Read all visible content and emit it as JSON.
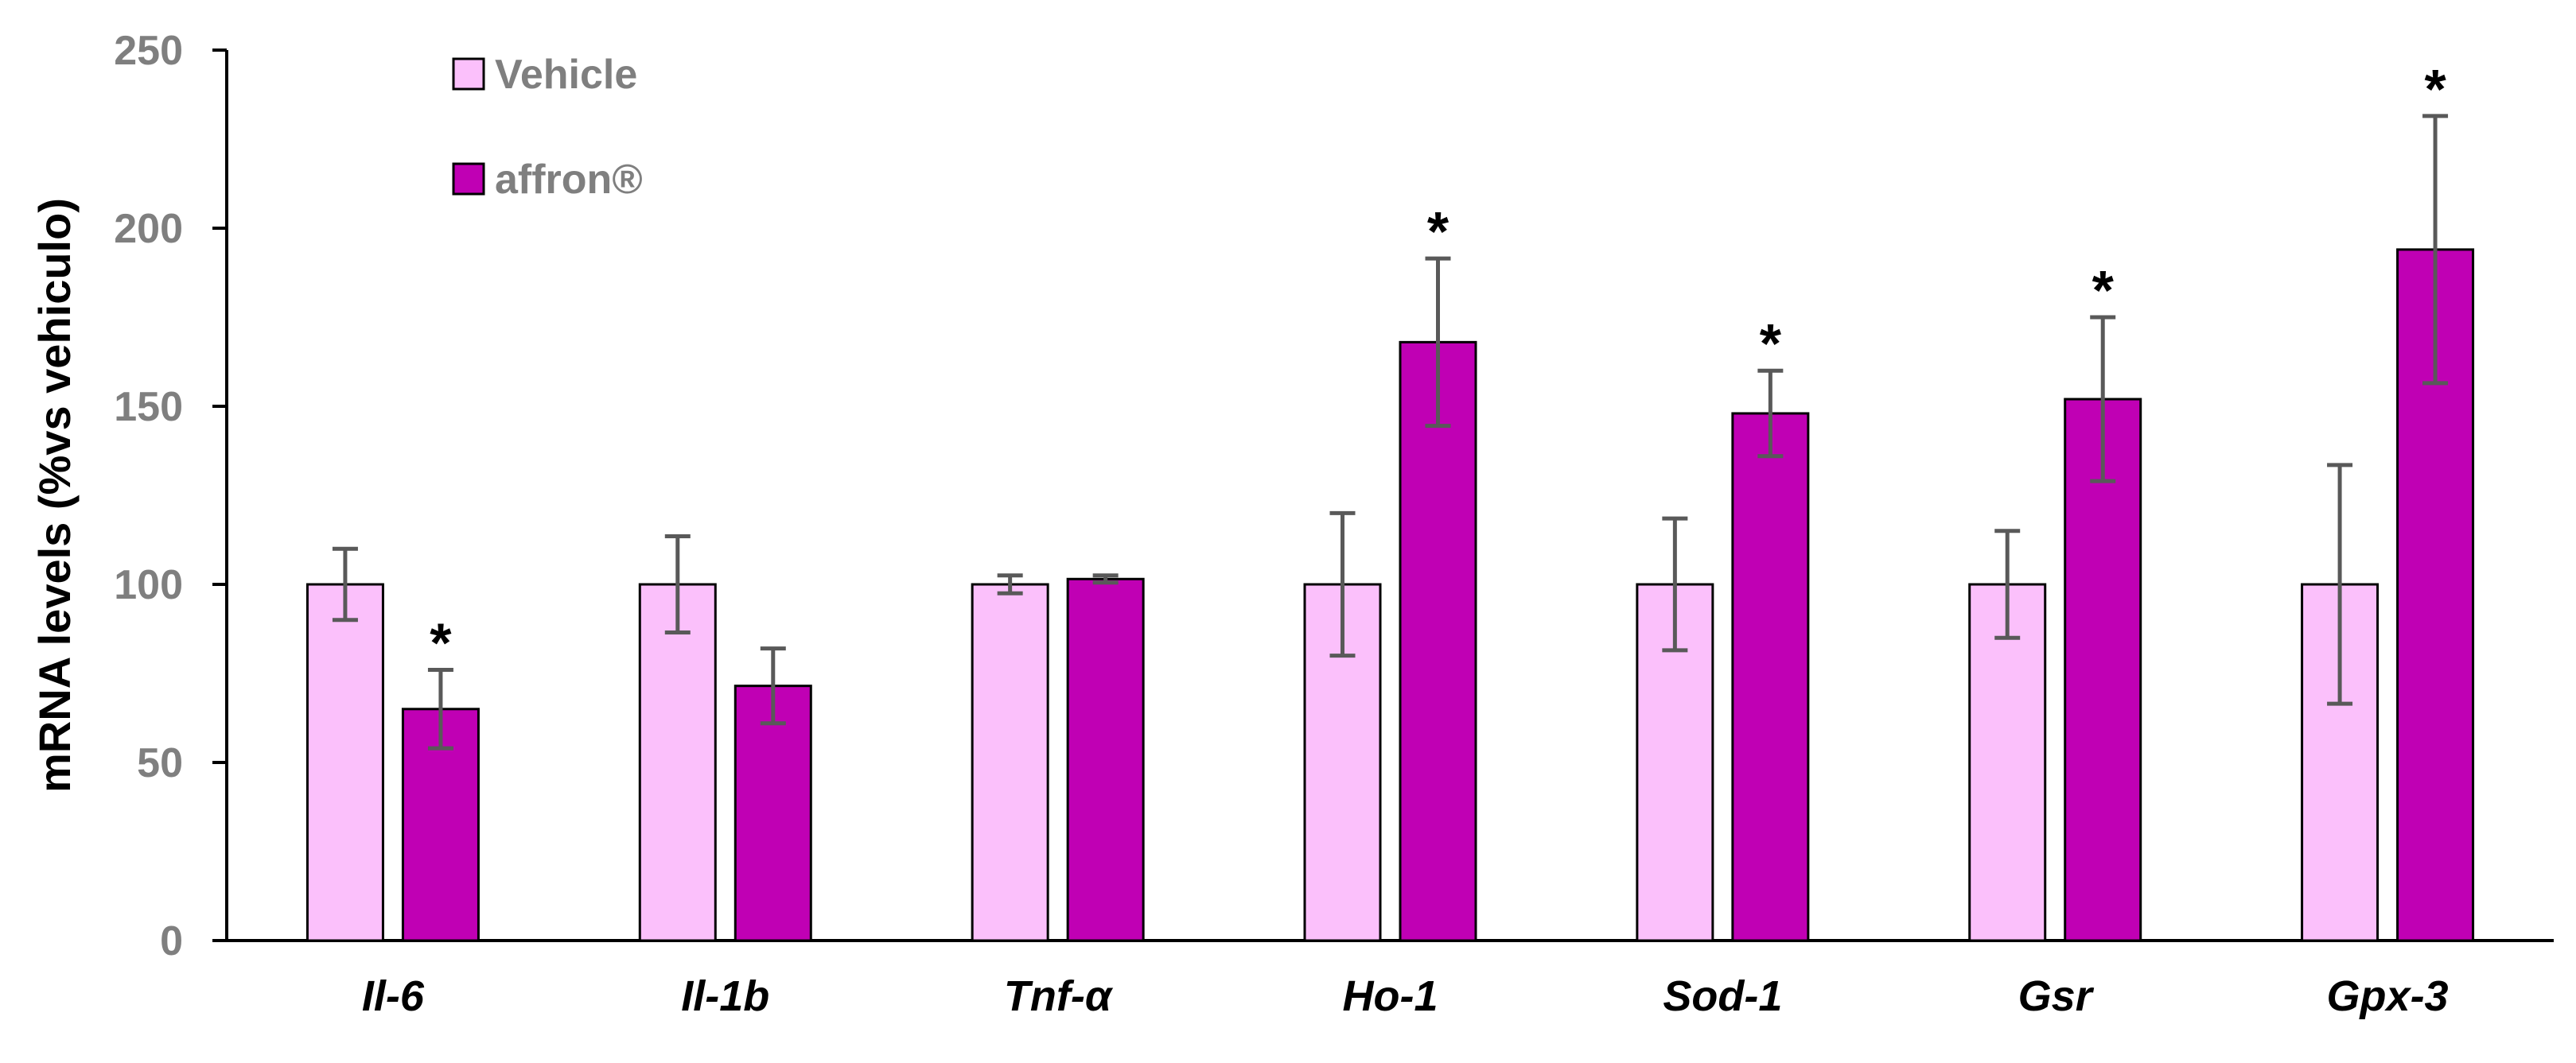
{
  "chart_data": {
    "type": "bar",
    "title": "",
    "xlabel": "",
    "ylabel": "mRNA levels (%vs vehiculo)",
    "ylim": [
      0,
      250
    ],
    "yticks": [
      0,
      50,
      100,
      150,
      200,
      250
    ],
    "categories": [
      "Il-6",
      "Il-1b",
      "Tnf-α",
      "Ho-1",
      "Sod-1",
      "Gsr",
      "Gpx-3"
    ],
    "series": [
      {
        "name": "Vehicle",
        "color": "#fbc0fb",
        "values": [
          100,
          100,
          100,
          100,
          100,
          100,
          100
        ],
        "errors": [
          10,
          13.5,
          2.5,
          20,
          18.5,
          15,
          33.5
        ]
      },
      {
        "name": "affron®",
        "color": "#c000b4",
        "values": [
          65,
          71.5,
          101.5,
          168,
          148,
          152,
          194
        ],
        "errors": [
          11,
          10.5,
          1,
          23.5,
          12,
          23,
          37.5
        ]
      }
    ],
    "significance": [
      {
        "category": "Il-6",
        "series": "affron®",
        "mark": "*"
      },
      {
        "category": "Ho-1",
        "series": "affron®",
        "mark": "*"
      },
      {
        "category": "Sod-1",
        "series": "affron®",
        "mark": "*"
      },
      {
        "category": "Gsr",
        "series": "affron®",
        "mark": "*"
      },
      {
        "category": "Gpx-3",
        "series": "affron®",
        "mark": "*"
      }
    ],
    "legend_position": "top-left",
    "grid": false
  }
}
